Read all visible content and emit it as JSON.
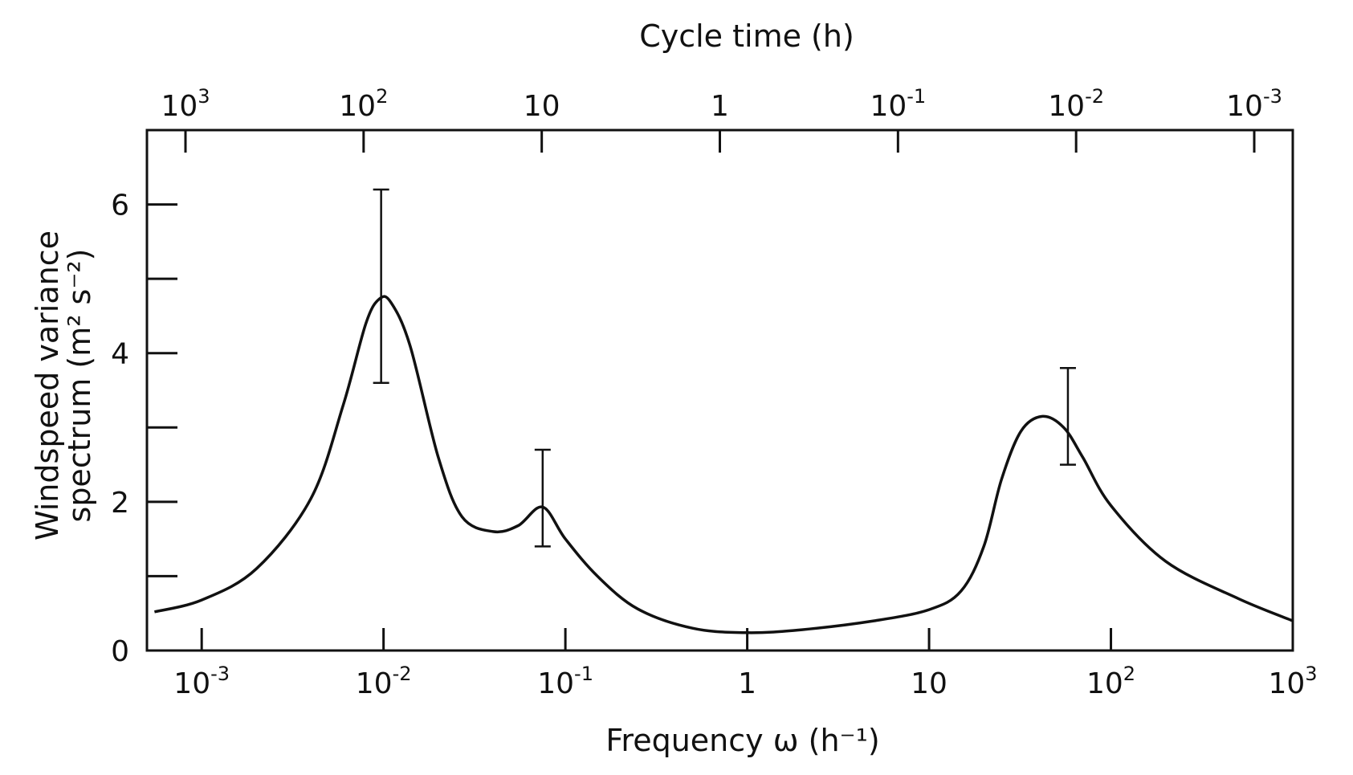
{
  "chart_data": {
    "type": "line",
    "title": "",
    "top_axis_title": "Cycle time (h)",
    "xlabel": "Frequency ω (h⁻¹)",
    "ylabel_line1": "Windspeed variance",
    "ylabel_line2": "spectrum (m² s⁻²)",
    "xscale": "log",
    "xlim": [
      0.0005,
      1000
    ],
    "ylim": [
      0,
      7
    ],
    "grid": false,
    "x_ticks": [
      {
        "value": 0.001,
        "base": "10",
        "exp": "-3"
      },
      {
        "value": 0.01,
        "base": "10",
        "exp": "-2"
      },
      {
        "value": 0.1,
        "base": "10",
        "exp": "-1"
      },
      {
        "value": 1,
        "base": "1",
        "exp": ""
      },
      {
        "value": 10,
        "base": "10",
        "exp": ""
      },
      {
        "value": 100,
        "base": "10",
        "exp": "2"
      },
      {
        "value": 1000,
        "base": "10",
        "exp": "3"
      }
    ],
    "top_ticks": [
      {
        "value": 1000,
        "base": "10",
        "exp": "3"
      },
      {
        "value": 100,
        "base": "10",
        "exp": "2"
      },
      {
        "value": 10,
        "base": "10",
        "exp": ""
      },
      {
        "value": 1,
        "base": "1",
        "exp": ""
      },
      {
        "value": 0.1,
        "base": "10",
        "exp": "-1"
      },
      {
        "value": 0.01,
        "base": "10",
        "exp": "-2"
      },
      {
        "value": 0.001,
        "base": "10",
        "exp": "-3"
      }
    ],
    "y_ticks": [
      {
        "value": 0,
        "label": "0"
      },
      {
        "value": 1,
        "label": ""
      },
      {
        "value": 2,
        "label": "2"
      },
      {
        "value": 3,
        "label": ""
      },
      {
        "value": 4,
        "label": "4"
      },
      {
        "value": 5,
        "label": ""
      },
      {
        "value": 6,
        "label": "6"
      }
    ],
    "series": [
      {
        "name": "Windspeed variance spectrum",
        "points": [
          [
            0.00055,
            0.52
          ],
          [
            0.001,
            0.68
          ],
          [
            0.002,
            1.1
          ],
          [
            0.004,
            2.05
          ],
          [
            0.006,
            3.3
          ],
          [
            0.008,
            4.4
          ],
          [
            0.0095,
            4.73
          ],
          [
            0.011,
            4.68
          ],
          [
            0.014,
            4.1
          ],
          [
            0.02,
            2.6
          ],
          [
            0.027,
            1.8
          ],
          [
            0.04,
            1.6
          ],
          [
            0.055,
            1.68
          ],
          [
            0.075,
            1.93
          ],
          [
            0.1,
            1.5
          ],
          [
            0.15,
            1.0
          ],
          [
            0.25,
            0.56
          ],
          [
            0.5,
            0.3
          ],
          [
            1,
            0.24
          ],
          [
            2,
            0.28
          ],
          [
            5,
            0.4
          ],
          [
            10,
            0.55
          ],
          [
            15,
            0.8
          ],
          [
            20,
            1.4
          ],
          [
            25,
            2.3
          ],
          [
            32,
            2.95
          ],
          [
            42,
            3.15
          ],
          [
            55,
            3.0
          ],
          [
            70,
            2.6
          ],
          [
            100,
            1.95
          ],
          [
            200,
            1.2
          ],
          [
            500,
            0.7
          ],
          [
            1000,
            0.4
          ]
        ]
      }
    ],
    "error_bars": [
      {
        "x": 0.0097,
        "low": 3.6,
        "high": 6.2
      },
      {
        "x": 0.075,
        "low": 1.4,
        "high": 2.7
      },
      {
        "x": 58,
        "low": 2.5,
        "high": 3.8
      }
    ]
  }
}
